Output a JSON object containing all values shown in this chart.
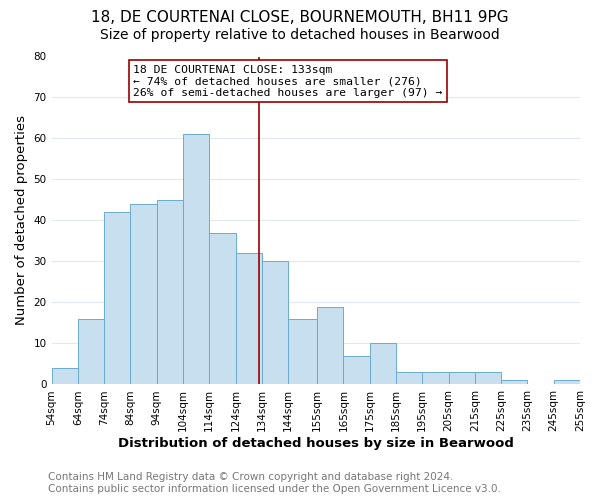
{
  "title": "18, DE COURTENAI CLOSE, BOURNEMOUTH, BH11 9PG",
  "subtitle": "Size of property relative to detached houses in Bearwood",
  "xlabel": "Distribution of detached houses by size in Bearwood",
  "ylabel": "Number of detached properties",
  "bin_edges": [
    54,
    64,
    74,
    84,
    94,
    104,
    114,
    124,
    134,
    144,
    155,
    165,
    175,
    185,
    195,
    205,
    215,
    225,
    235,
    245,
    255
  ],
  "counts": [
    4,
    16,
    42,
    44,
    45,
    61,
    37,
    32,
    30,
    16,
    19,
    7,
    10,
    3,
    3,
    3,
    3,
    1,
    0,
    1
  ],
  "bar_color": "#c8dff0",
  "bar_edgecolor": "#6aabce",
  "vline_x": 133,
  "vline_color": "#990000",
  "annotation_title": "18 DE COURTENAI CLOSE: 133sqm",
  "annotation_line1": "← 74% of detached houses are smaller (276)",
  "annotation_line2": "26% of semi-detached houses are larger (97) →",
  "annotation_box_edgecolor": "#990000",
  "ylim": [
    0,
    80
  ],
  "yticks": [
    0,
    10,
    20,
    30,
    40,
    50,
    60,
    70,
    80
  ],
  "xtick_labels": [
    "54sqm",
    "64sqm",
    "74sqm",
    "84sqm",
    "94sqm",
    "104sqm",
    "114sqm",
    "124sqm",
    "134sqm",
    "144sqm",
    "155sqm",
    "165sqm",
    "175sqm",
    "185sqm",
    "195sqm",
    "205sqm",
    "215sqm",
    "225sqm",
    "235sqm",
    "245sqm",
    "255sqm"
  ],
  "footer_line1": "Contains HM Land Registry data © Crown copyright and database right 2024.",
  "footer_line2": "Contains public sector information licensed under the Open Government Licence v3.0.",
  "background_color": "#ffffff",
  "grid_color": "#e0e8f0",
  "title_fontsize": 11,
  "subtitle_fontsize": 10,
  "axis_label_fontsize": 9.5,
  "tick_fontsize": 7.5,
  "footer_fontsize": 7.5
}
